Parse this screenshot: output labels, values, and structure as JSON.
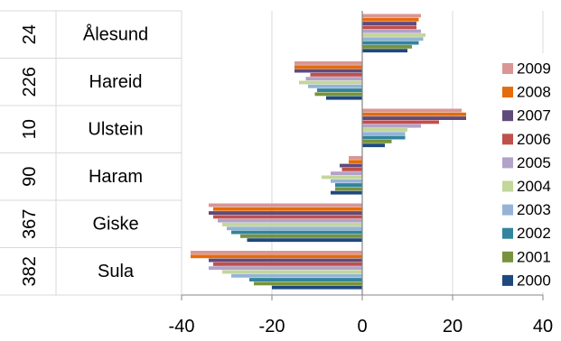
{
  "chart_data": {
    "type": "bar",
    "orientation": "horizontal",
    "title": "",
    "xlabel": "",
    "ylabel": "",
    "xlim": [
      -40,
      40
    ],
    "x_ticks": [
      "-40",
      "-20",
      "0",
      "20",
      "40"
    ],
    "grid": true,
    "legend_position": "right",
    "categories": [
      {
        "code": "24",
        "name": "Ålesund"
      },
      {
        "code": "226",
        "name": "Hareid"
      },
      {
        "code": "10",
        "name": "Ulstein"
      },
      {
        "code": "90",
        "name": "Haram"
      },
      {
        "code": "367",
        "name": "Giske"
      },
      {
        "code": "382",
        "name": "Sula"
      }
    ],
    "series": [
      {
        "name": "2009",
        "color": "#D99694",
        "values": [
          13,
          -15,
          22,
          -3,
          -34,
          -38
        ]
      },
      {
        "name": "2008",
        "color": "#E46C0A",
        "values": [
          12.5,
          -15,
          23,
          -3,
          -33,
          -38
        ]
      },
      {
        "name": "2007",
        "color": "#604A7B",
        "values": [
          12,
          -15,
          23,
          -5,
          -34,
          -34
        ]
      },
      {
        "name": "2006",
        "color": "#C0504D",
        "values": [
          12,
          -11.5,
          17,
          -4.5,
          -33,
          -33
        ]
      },
      {
        "name": "2005",
        "color": "#B3A2C7",
        "values": [
          13,
          -12.5,
          13,
          -7,
          -32,
          -34
        ]
      },
      {
        "name": "2004",
        "color": "#C3D69B",
        "values": [
          14,
          -14,
          10,
          -9,
          -31,
          -31
        ]
      },
      {
        "name": "2003",
        "color": "#95B3D7",
        "values": [
          13.5,
          -12,
          9.5,
          -7,
          -30,
          -29
        ]
      },
      {
        "name": "2002",
        "color": "#31859C",
        "values": [
          12.5,
          -10,
          9.5,
          -6,
          -29,
          -25
        ]
      },
      {
        "name": "2001",
        "color": "#77933C",
        "values": [
          11,
          -10.5,
          6.5,
          -6,
          -27,
          -24
        ]
      },
      {
        "name": "2000",
        "color": "#1F497D",
        "values": [
          10,
          -8,
          5,
          -7,
          -25.5,
          -20
        ]
      }
    ]
  }
}
